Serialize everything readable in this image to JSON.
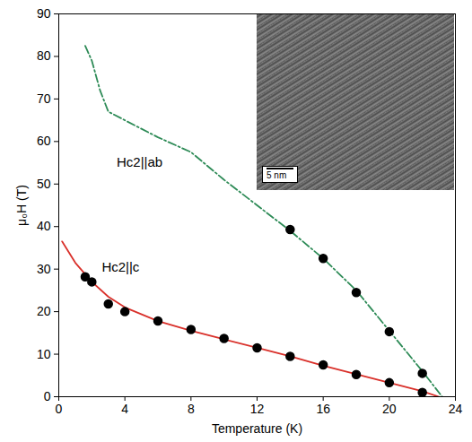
{
  "chart_data": {
    "type": "line",
    "x_label": "Temperature (K)",
    "y_label": "μ₀H (T)",
    "xlim": [
      0,
      24
    ],
    "xticks": [
      0,
      4,
      8,
      12,
      16,
      20,
      24
    ],
    "ylim": [
      0,
      90
    ],
    "yticks": [
      0,
      10,
      20,
      30,
      40,
      50,
      60,
      70,
      80,
      90
    ],
    "grid": false,
    "series": [
      {
        "type": "line",
        "color": "#2e8b57",
        "line_style": "dashdot",
        "x": [
          1.6,
          2,
          2.5,
          3,
          4,
          6,
          8,
          10,
          12,
          14,
          16,
          18,
          20,
          22,
          23.2
        ],
        "values": [
          82.5,
          79,
          72,
          67,
          65,
          61,
          57.5,
          51,
          45,
          39,
          32.5,
          25,
          15.5,
          6,
          0
        ]
      },
      {
        "type": "line",
        "color": "#d9302a",
        "line_style": "solid",
        "x": [
          0.2,
          1,
          2,
          3,
          4,
          6,
          8,
          10,
          12,
          14,
          16,
          18,
          20,
          22,
          23
        ],
        "values": [
          36.5,
          31.5,
          27,
          23.5,
          21,
          17.8,
          15.5,
          13.5,
          11.5,
          9.5,
          7.3,
          5.3,
          3.3,
          1.3,
          0
        ]
      },
      {
        "type": "scatter",
        "color": "#000000",
        "marker": "circle",
        "x": [
          14,
          16,
          18,
          20,
          22
        ],
        "values": [
          39.3,
          32.5,
          24.5,
          15.3,
          5.5
        ]
      },
      {
        "type": "scatter",
        "color": "#000000",
        "marker": "circle",
        "x": [
          1.6,
          2,
          3,
          4,
          6,
          8,
          10,
          12,
          14,
          16,
          18,
          20,
          22
        ],
        "values": [
          28.2,
          27,
          21.8,
          20,
          17.8,
          15.8,
          13.7,
          11.5,
          9.5,
          7.5,
          5.2,
          3.3,
          1
        ]
      }
    ],
    "annotations": [
      {
        "text": "Hc2||ab",
        "x": 3.5,
        "y": 55
      },
      {
        "text": "Hc2||c",
        "x": 2.6,
        "y": 30.5
      }
    ],
    "inset": {
      "scale_bar_label": "5 nm"
    }
  }
}
